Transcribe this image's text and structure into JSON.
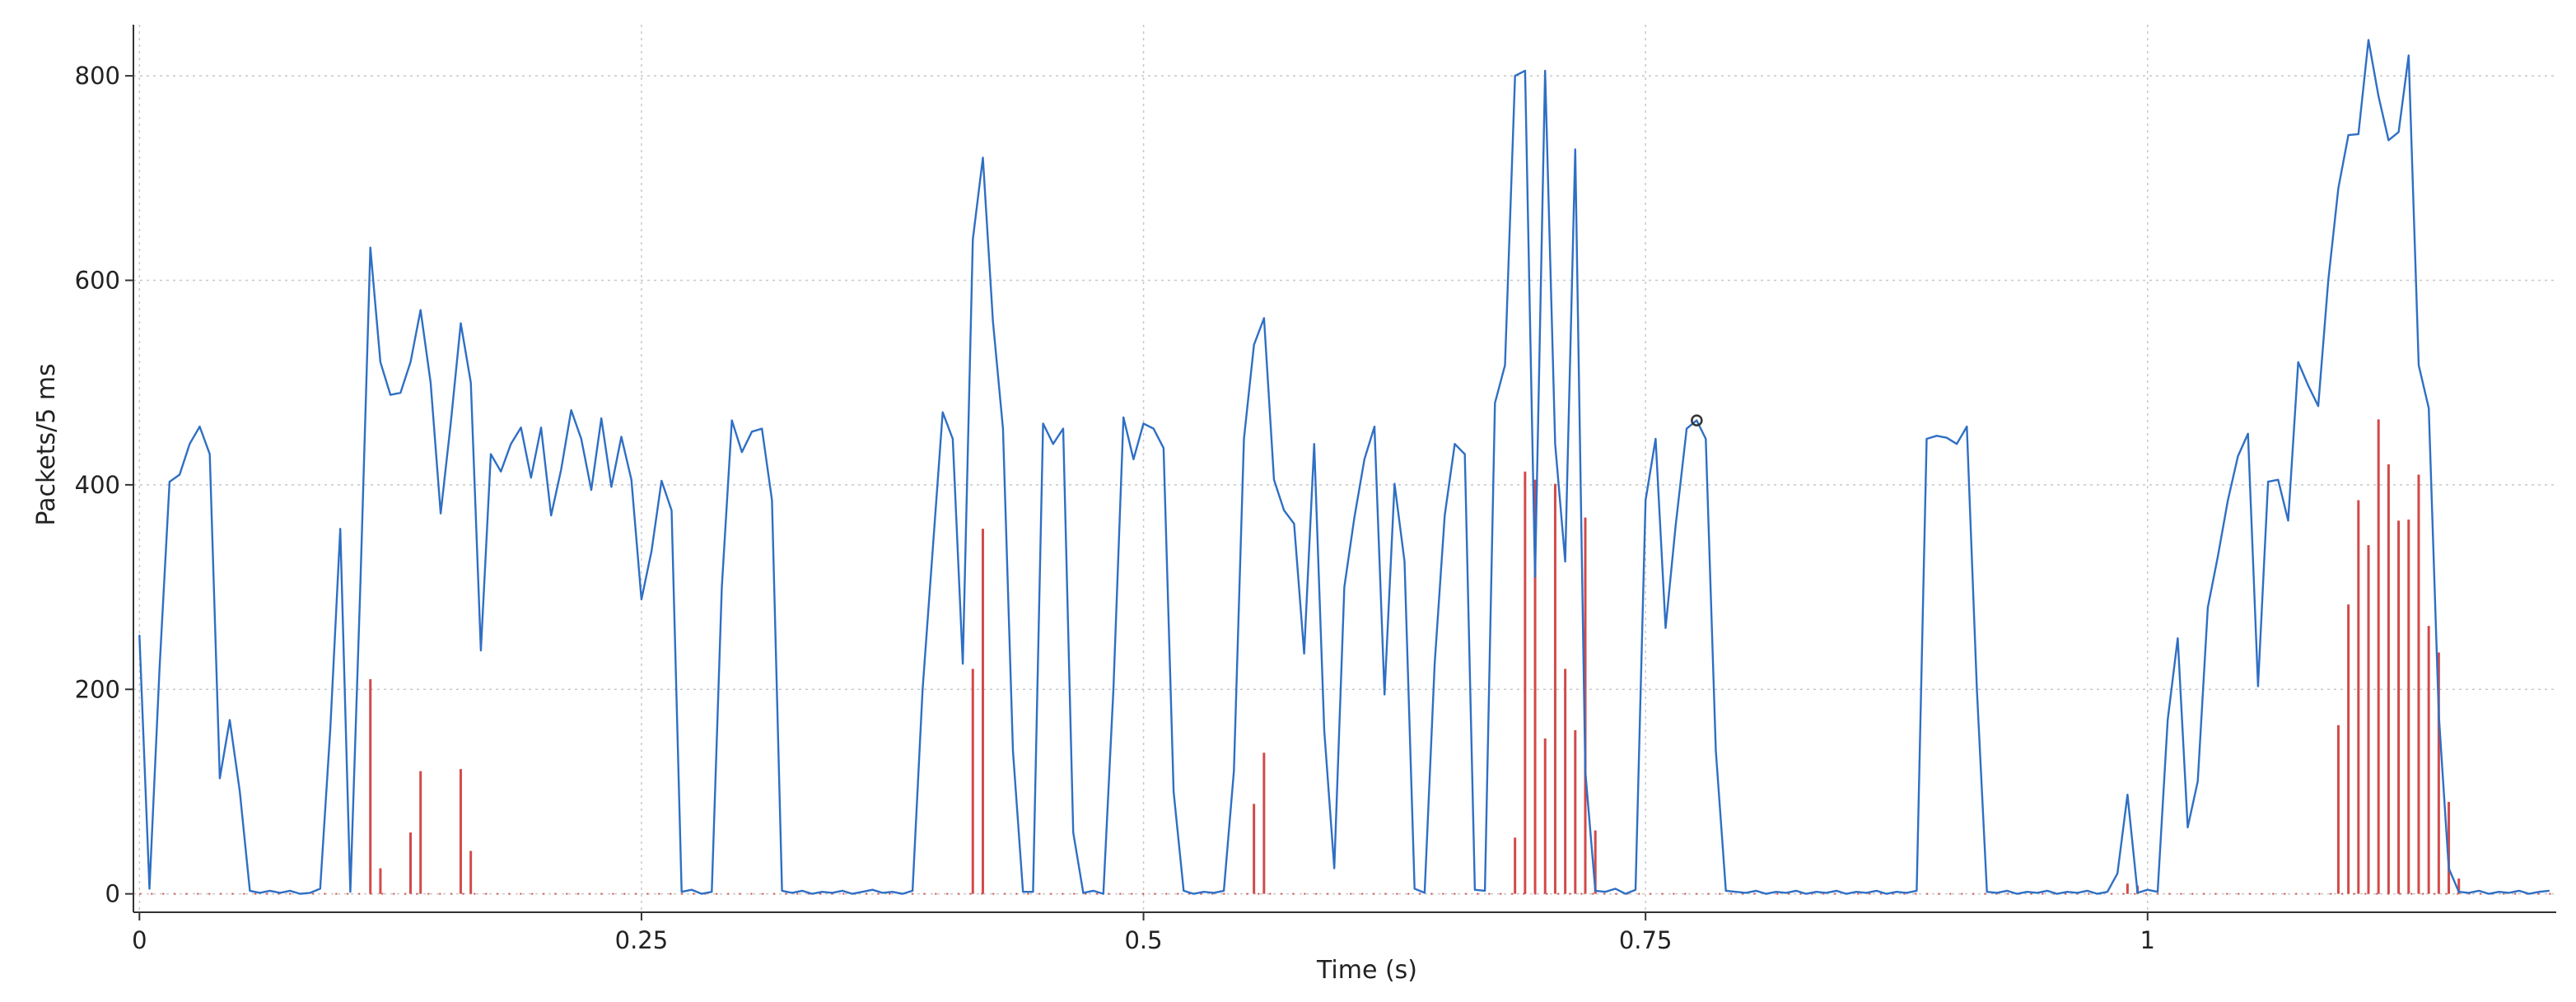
{
  "chart_data": {
    "type": "line",
    "title": "",
    "xlabel": "Time (s)",
    "ylabel": "Packets/5 ms",
    "xlim": [
      -0.003,
      1.2035
    ],
    "ylim": [
      -18,
      850
    ],
    "x_ticks": [
      {
        "value": 0,
        "label": "0"
      },
      {
        "value": 0.25,
        "label": "0.25"
      },
      {
        "value": 0.5,
        "label": "0.5"
      },
      {
        "value": 0.75,
        "label": "0.75"
      },
      {
        "value": 1,
        "label": "1"
      }
    ],
    "y_ticks": [
      {
        "value": 0,
        "label": "0"
      },
      {
        "value": 200,
        "label": "200"
      },
      {
        "value": 400,
        "label": "400"
      },
      {
        "value": 600,
        "label": "600"
      },
      {
        "value": 800,
        "label": "800"
      }
    ],
    "grid": true,
    "legend": "none",
    "marker": {
      "x": 0.7755,
      "y": 463
    },
    "series": [
      {
        "style": "line",
        "color": "#2f6fc4",
        "points": [
          [
            0,
            253
          ],
          [
            0.005,
            5
          ],
          [
            0.01,
            220
          ],
          [
            0.015,
            403
          ],
          [
            0.02,
            410
          ],
          [
            0.025,
            440
          ],
          [
            0.03,
            457
          ],
          [
            0.035,
            430
          ],
          [
            0.04,
            113
          ],
          [
            0.045,
            170
          ],
          [
            0.05,
            100
          ],
          [
            0.055,
            3
          ],
          [
            0.06,
            1
          ],
          [
            0.065,
            3
          ],
          [
            0.07,
            1
          ],
          [
            0.075,
            3
          ],
          [
            0.08,
            0
          ],
          [
            0.085,
            1
          ],
          [
            0.09,
            5
          ],
          [
            0.095,
            160
          ],
          [
            0.1,
            357
          ],
          [
            0.105,
            2
          ],
          [
            0.11,
            300
          ],
          [
            0.115,
            632
          ],
          [
            0.12,
            520
          ],
          [
            0.125,
            488
          ],
          [
            0.13,
            490
          ],
          [
            0.135,
            520
          ],
          [
            0.14,
            571
          ],
          [
            0.145,
            500
          ],
          [
            0.15,
            372
          ],
          [
            0.155,
            460
          ],
          [
            0.16,
            558
          ],
          [
            0.165,
            500
          ],
          [
            0.17,
            238
          ],
          [
            0.175,
            430
          ],
          [
            0.18,
            413
          ],
          [
            0.185,
            440
          ],
          [
            0.19,
            456
          ],
          [
            0.195,
            407
          ],
          [
            0.2,
            456
          ],
          [
            0.205,
            370
          ],
          [
            0.21,
            415
          ],
          [
            0.215,
            473
          ],
          [
            0.22,
            445
          ],
          [
            0.225,
            395
          ],
          [
            0.23,
            465
          ],
          [
            0.235,
            398
          ],
          [
            0.24,
            447
          ],
          [
            0.245,
            405
          ],
          [
            0.25,
            288
          ],
          [
            0.255,
            335
          ],
          [
            0.26,
            404
          ],
          [
            0.265,
            375
          ],
          [
            0.27,
            2
          ],
          [
            0.275,
            4
          ],
          [
            0.28,
            0
          ],
          [
            0.285,
            2
          ],
          [
            0.29,
            300
          ],
          [
            0.295,
            463
          ],
          [
            0.3,
            432
          ],
          [
            0.305,
            452
          ],
          [
            0.31,
            455
          ],
          [
            0.315,
            385
          ],
          [
            0.32,
            3
          ],
          [
            0.325,
            1
          ],
          [
            0.33,
            3
          ],
          [
            0.335,
            0
          ],
          [
            0.34,
            2
          ],
          [
            0.345,
            1
          ],
          [
            0.35,
            3
          ],
          [
            0.355,
            0
          ],
          [
            0.36,
            2
          ],
          [
            0.365,
            4
          ],
          [
            0.37,
            1
          ],
          [
            0.375,
            2
          ],
          [
            0.38,
            0
          ],
          [
            0.385,
            3
          ],
          [
            0.39,
            200
          ],
          [
            0.4,
            471
          ],
          [
            0.405,
            445
          ],
          [
            0.41,
            225
          ],
          [
            0.415,
            640
          ],
          [
            0.42,
            720
          ],
          [
            0.425,
            560
          ],
          [
            0.43,
            455
          ],
          [
            0.435,
            140
          ],
          [
            0.44,
            2
          ],
          [
            0.445,
            2
          ],
          [
            0.45,
            460
          ],
          [
            0.455,
            440
          ],
          [
            0.46,
            455
          ],
          [
            0.465,
            60
          ],
          [
            0.47,
            1
          ],
          [
            0.475,
            3
          ],
          [
            0.48,
            0
          ],
          [
            0.485,
            200
          ],
          [
            0.49,
            466
          ],
          [
            0.495,
            425
          ],
          [
            0.5,
            460
          ],
          [
            0.505,
            455
          ],
          [
            0.51,
            436
          ],
          [
            0.515,
            100
          ],
          [
            0.52,
            3
          ],
          [
            0.525,
            0
          ],
          [
            0.53,
            2
          ],
          [
            0.535,
            1
          ],
          [
            0.54,
            3
          ],
          [
            0.545,
            120
          ],
          [
            0.55,
            445
          ],
          [
            0.555,
            537
          ],
          [
            0.56,
            563
          ],
          [
            0.565,
            405
          ],
          [
            0.57,
            375
          ],
          [
            0.575,
            362
          ],
          [
            0.58,
            235
          ],
          [
            0.585,
            440
          ],
          [
            0.59,
            160
          ],
          [
            0.595,
            25
          ],
          [
            0.6,
            300
          ],
          [
            0.605,
            368
          ],
          [
            0.61,
            425
          ],
          [
            0.615,
            457
          ],
          [
            0.62,
            195
          ],
          [
            0.625,
            401
          ],
          [
            0.63,
            325
          ],
          [
            0.635,
            5
          ],
          [
            0.64,
            1
          ],
          [
            0.645,
            225
          ],
          [
            0.65,
            370
          ],
          [
            0.655,
            440
          ],
          [
            0.66,
            430
          ],
          [
            0.665,
            4
          ],
          [
            0.67,
            3
          ],
          [
            0.675,
            480
          ],
          [
            0.68,
            517
          ],
          [
            0.685,
            800
          ],
          [
            0.69,
            805
          ],
          [
            0.695,
            310
          ],
          [
            0.7,
            805
          ],
          [
            0.705,
            440
          ],
          [
            0.71,
            325
          ],
          [
            0.715,
            728
          ],
          [
            0.72,
            120
          ],
          [
            0.725,
            3
          ],
          [
            0.73,
            2
          ],
          [
            0.735,
            5
          ],
          [
            0.74,
            0
          ],
          [
            0.745,
            4
          ],
          [
            0.75,
            385
          ],
          [
            0.755,
            445
          ],
          [
            0.76,
            260
          ],
          [
            0.765,
            360
          ],
          [
            0.7705,
            455
          ],
          [
            0.7755,
            463
          ],
          [
            0.78,
            445
          ],
          [
            0.785,
            140
          ],
          [
            0.79,
            3
          ],
          [
            0.795,
            2
          ],
          [
            0.8,
            1
          ],
          [
            0.805,
            3
          ],
          [
            0.81,
            0
          ],
          [
            0.815,
            2
          ],
          [
            0.82,
            1
          ],
          [
            0.825,
            3
          ],
          [
            0.83,
            0
          ],
          [
            0.835,
            2
          ],
          [
            0.84,
            1
          ],
          [
            0.845,
            3
          ],
          [
            0.85,
            0
          ],
          [
            0.855,
            2
          ],
          [
            0.86,
            1
          ],
          [
            0.865,
            3
          ],
          [
            0.87,
            0
          ],
          [
            0.875,
            2
          ],
          [
            0.88,
            1
          ],
          [
            0.885,
            3
          ],
          [
            0.89,
            445
          ],
          [
            0.895,
            448
          ],
          [
            0.9,
            446
          ],
          [
            0.905,
            440
          ],
          [
            0.91,
            457
          ],
          [
            0.915,
            200
          ],
          [
            0.92,
            2
          ],
          [
            0.925,
            1
          ],
          [
            0.93,
            3
          ],
          [
            0.935,
            0
          ],
          [
            0.94,
            2
          ],
          [
            0.945,
            1
          ],
          [
            0.95,
            3
          ],
          [
            0.955,
            0
          ],
          [
            0.96,
            2
          ],
          [
            0.965,
            1
          ],
          [
            0.97,
            3
          ],
          [
            0.975,
            0
          ],
          [
            0.98,
            2
          ],
          [
            0.985,
            20
          ],
          [
            0.99,
            97
          ],
          [
            0.995,
            1
          ],
          [
            1,
            4
          ],
          [
            1.005,
            2
          ],
          [
            1.01,
            170
          ],
          [
            1.015,
            250
          ],
          [
            1.02,
            65
          ],
          [
            1.025,
            110
          ],
          [
            1.03,
            280
          ],
          [
            1.035,
            330
          ],
          [
            1.04,
            385
          ],
          [
            1.045,
            428
          ],
          [
            1.05,
            450
          ],
          [
            1.055,
            203
          ],
          [
            1.06,
            403
          ],
          [
            1.065,
            405
          ],
          [
            1.07,
            365
          ],
          [
            1.075,
            520
          ],
          [
            1.08,
            497
          ],
          [
            1.085,
            477
          ],
          [
            1.09,
            600
          ],
          [
            1.095,
            690
          ],
          [
            1.1,
            742
          ],
          [
            1.105,
            743
          ],
          [
            1.11,
            835
          ],
          [
            1.115,
            780
          ],
          [
            1.12,
            737
          ],
          [
            1.125,
            745
          ],
          [
            1.13,
            820
          ],
          [
            1.135,
            517
          ],
          [
            1.14,
            475
          ],
          [
            1.145,
            175
          ],
          [
            1.15,
            25
          ],
          [
            1.155,
            2
          ],
          [
            1.16,
            1
          ],
          [
            1.165,
            3
          ],
          [
            1.17,
            0
          ],
          [
            1.175,
            2
          ],
          [
            1.18,
            1
          ],
          [
            1.185,
            3
          ],
          [
            1.19,
            0
          ],
          [
            1.195,
            2
          ],
          [
            1.2,
            3
          ]
        ]
      },
      {
        "style": "impulse",
        "color": "#d24a4a",
        "points": [
          [
            0.115,
            210
          ],
          [
            0.12,
            25
          ],
          [
            0.135,
            60
          ],
          [
            0.14,
            120
          ],
          [
            0.16,
            122
          ],
          [
            0.165,
            42
          ],
          [
            0.415,
            220
          ],
          [
            0.42,
            357
          ],
          [
            0.555,
            88
          ],
          [
            0.56,
            138
          ],
          [
            0.685,
            55
          ],
          [
            0.69,
            413
          ],
          [
            0.695,
            405
          ],
          [
            0.7,
            152
          ],
          [
            0.705,
            401
          ],
          [
            0.71,
            220
          ],
          [
            0.715,
            160
          ],
          [
            0.72,
            368
          ],
          [
            0.725,
            62
          ],
          [
            0.99,
            10
          ],
          [
            0.995,
            8
          ],
          [
            1.095,
            165
          ],
          [
            1.1,
            283
          ],
          [
            1.105,
            385
          ],
          [
            1.11,
            341
          ],
          [
            1.115,
            464
          ],
          [
            1.12,
            420
          ],
          [
            1.125,
            365
          ],
          [
            1.13,
            366
          ],
          [
            1.135,
            410
          ],
          [
            1.14,
            262
          ],
          [
            1.145,
            236
          ],
          [
            1.15,
            90
          ],
          [
            1.155,
            15
          ]
        ]
      }
    ]
  }
}
